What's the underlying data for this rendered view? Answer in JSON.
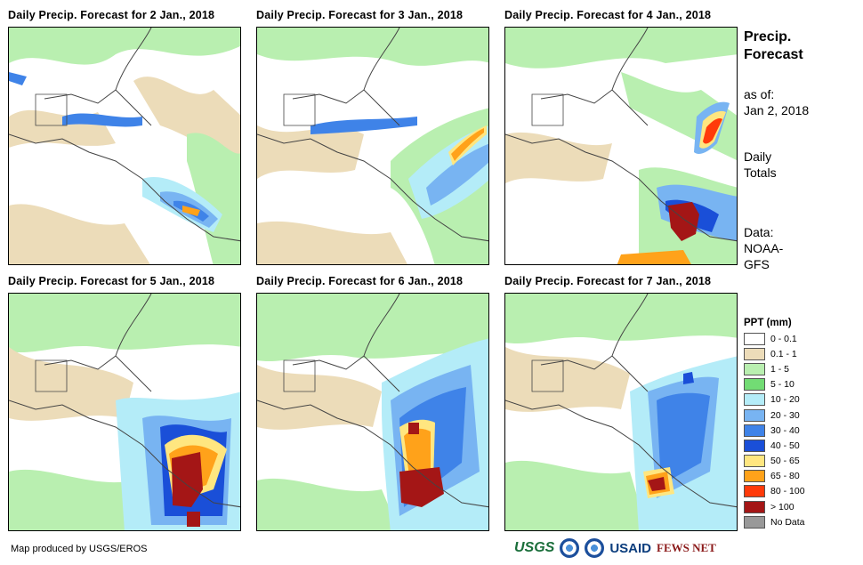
{
  "panels": [
    {
      "title": "Daily Precip. Forecast for 2 Jan., 2018"
    },
    {
      "title": "Daily Precip. Forecast for 3 Jan., 2018"
    },
    {
      "title": "Daily Precip. Forecast for 4 Jan., 2018"
    },
    {
      "title": "Daily Precip. Forecast for 5 Jan., 2018"
    },
    {
      "title": "Daily Precip. Forecast for 6 Jan., 2018"
    },
    {
      "title": "Daily Precip. Forecast for 7 Jan., 2018"
    }
  ],
  "side": {
    "title_line1": "Precip.",
    "title_line2": "Forecast",
    "asof_label": "as of:",
    "asof_date": "Jan 2, 2018",
    "totals_line1": "Daily",
    "totals_line2": "Totals",
    "data_label": "Data:",
    "data_line1": "NOAA-",
    "data_line2": "GFS"
  },
  "legend": {
    "title": "PPT (mm)",
    "items": [
      {
        "label": "0 - 0.1",
        "color": "#ffffff"
      },
      {
        "label": "0.1 - 1",
        "color": "#ecdcb9"
      },
      {
        "label": "1 - 5",
        "color": "#b9efb0"
      },
      {
        "label": "5 - 10",
        "color": "#72dc74"
      },
      {
        "label": "10 - 20",
        "color": "#b4ecf8"
      },
      {
        "label": "20 - 30",
        "color": "#78b4f2"
      },
      {
        "label": "30 - 40",
        "color": "#3f83e8"
      },
      {
        "label": "40 - 50",
        "color": "#1a4fd8"
      },
      {
        "label": "50 - 65",
        "color": "#ffe680"
      },
      {
        "label": "65 - 80",
        "color": "#ffa21a"
      },
      {
        "label": "80 - 100",
        "color": "#ff3a0a"
      },
      {
        "label": "> 100",
        "color": "#a41616"
      },
      {
        "label": "No Data",
        "color": "#999999"
      }
    ]
  },
  "footer": {
    "credit": "Map produced by USGS/EROS"
  },
  "logos": {
    "usgs": "USGS",
    "usaid": "USAID",
    "fewsnet": "FEWS NET"
  }
}
